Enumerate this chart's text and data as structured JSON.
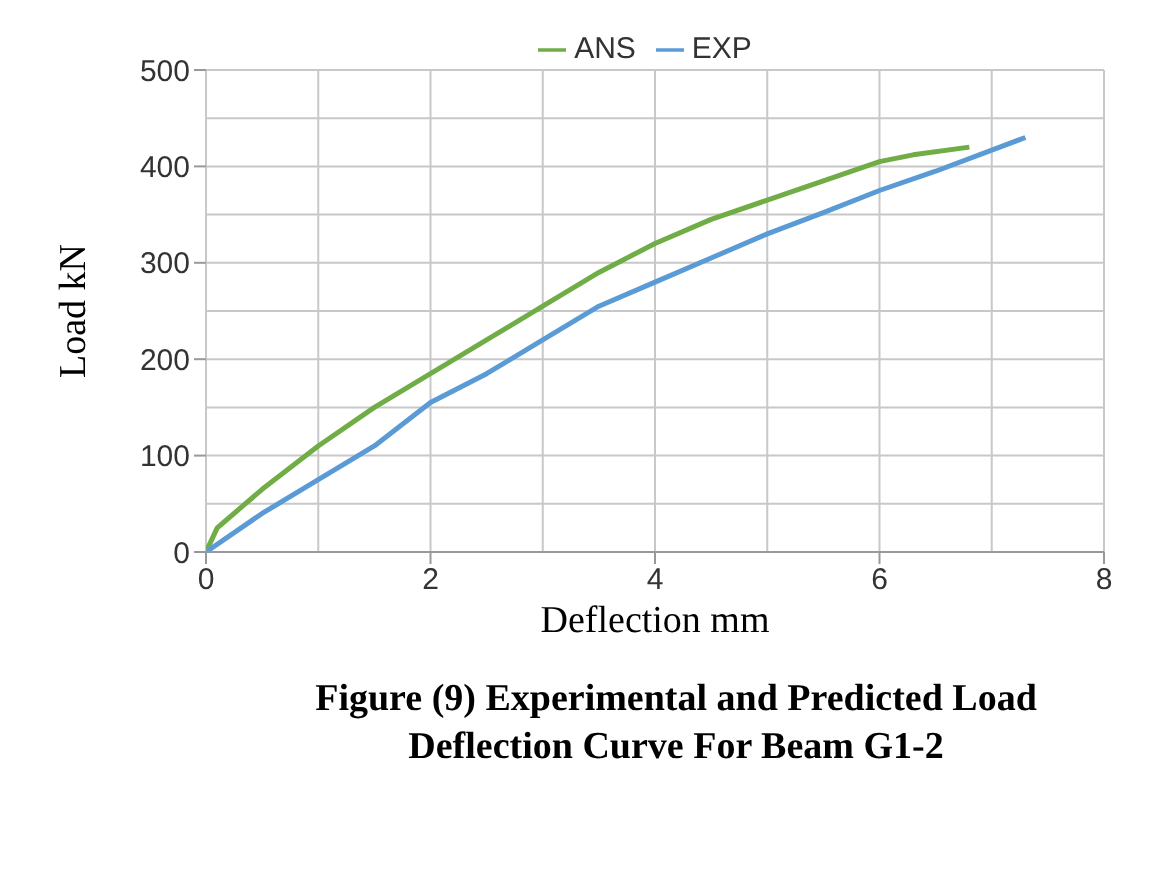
{
  "chart_data": {
    "type": "line",
    "title": "Figure (9) Experimental and Predicted Load Deflection Curve For Beam G1-2",
    "xlabel": "Deflection mm",
    "ylabel": "Load kN",
    "xlim": [
      0,
      8
    ],
    "xticks": [
      0,
      2,
      4,
      6,
      8
    ],
    "ylim": [
      0,
      500
    ],
    "yticks": [
      0,
      100,
      200,
      300,
      400,
      500
    ],
    "grid": true,
    "legend": "top",
    "marker": "none",
    "series": [
      {
        "name": "ANS",
        "color": "#70ad47",
        "x": [
          0,
          0.1,
          0.2,
          0.5,
          1,
          1.5,
          2,
          2.5,
          3,
          3.5,
          4,
          4.5,
          5,
          5.5,
          6,
          6.3,
          6.8
        ],
        "values": [
          0,
          25,
          35,
          65,
          110,
          150,
          185,
          220,
          255,
          290,
          320,
          345,
          365,
          385,
          405,
          412,
          420
        ]
      },
      {
        "name": "EXP",
        "color": "#5b9bd5",
        "x": [
          0,
          0.5,
          1,
          1.5,
          2,
          2.5,
          3,
          3.5,
          4,
          4.5,
          5,
          5.5,
          6,
          6.5,
          7.3
        ],
        "values": [
          0,
          40,
          75,
          110,
          155,
          185,
          220,
          255,
          280,
          305,
          330,
          352,
          375,
          395,
          430
        ]
      }
    ]
  }
}
